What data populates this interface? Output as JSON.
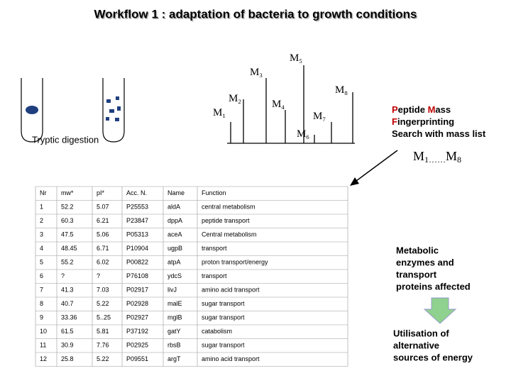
{
  "title": "Workflow 1 : adaptation of bacteria to growth conditions",
  "spectrum": {
    "peaks": [
      {
        "letter": "M",
        "index": "1"
      },
      {
        "letter": "M",
        "index": "2"
      },
      {
        "letter": "M",
        "index": "3"
      },
      {
        "letter": "M",
        "index": "4"
      },
      {
        "letter": "M",
        "index": "5"
      },
      {
        "letter": "M",
        "index": "6"
      },
      {
        "letter": "M",
        "index": "7"
      },
      {
        "letter": "M",
        "index": "8"
      }
    ],
    "digestion_label": "Tryptic digestion"
  },
  "search": {
    "lines": [
      [
        {
          "text": "P",
          "accent": true
        },
        {
          "text": "eptide "
        },
        {
          "text": "M",
          "accent": true
        },
        {
          "text": "ass"
        }
      ],
      [
        {
          "text": "F",
          "accent": true
        },
        {
          "text": "ingerprinting"
        }
      ],
      [
        {
          "text": "Search with mass list"
        }
      ]
    ],
    "accent_color": "#c00000",
    "range": [
      {
        "letter": "M",
        "index": "1"
      },
      {
        "text": "……"
      },
      {
        "letter": "M",
        "index": "8"
      }
    ]
  },
  "table": {
    "header": [
      "Nr",
      "mw*",
      "pI*",
      "Acc. N.",
      "Name",
      "Function"
    ],
    "rows": [
      [
        "1",
        "52.2",
        "5.07",
        "P25553",
        "aldA",
        "central metabolism"
      ],
      [
        "2",
        "60.3",
        "6.21",
        "P23847",
        "dppA",
        "peptide transport"
      ],
      [
        "3",
        "47.5",
        "5.06",
        "P05313",
        "aceA",
        "Central metabolism"
      ],
      [
        "4",
        "48.45",
        "6.71",
        "P10904",
        "ugpB",
        "transport"
      ],
      [
        "5",
        "55.2",
        "6.02",
        "P00822",
        "atpA",
        "proton transport/energy"
      ],
      [
        "6",
        "?",
        "?",
        "P76108",
        "ydcS",
        "transport"
      ],
      [
        "7",
        "41.3",
        "7.03",
        "P02917",
        "livJ",
        "amino acid transport"
      ],
      [
        "8",
        "40.7",
        "5.22",
        "P02928",
        "malE",
        "sugar transport"
      ],
      [
        "9",
        "33.36",
        "5..25",
        "P02927",
        "mglB",
        "sugar transport"
      ],
      [
        "10",
        "61.5",
        "5.81",
        "P37192",
        "gatY",
        "catabolism"
      ],
      [
        "11",
        "30.9",
        "7.76",
        "P02925",
        "rbsB",
        "sugar transport"
      ],
      [
        "12",
        "25.8",
        "5.22",
        "P09551",
        "argT",
        "amino acid transport"
      ]
    ]
  },
  "conclusion": {
    "affected": [
      "Metabolic",
      "enzymes and",
      "transport",
      "proteins affected"
    ],
    "result": [
      "Utilisation of",
      "alternative",
      "sources of energy"
    ]
  }
}
